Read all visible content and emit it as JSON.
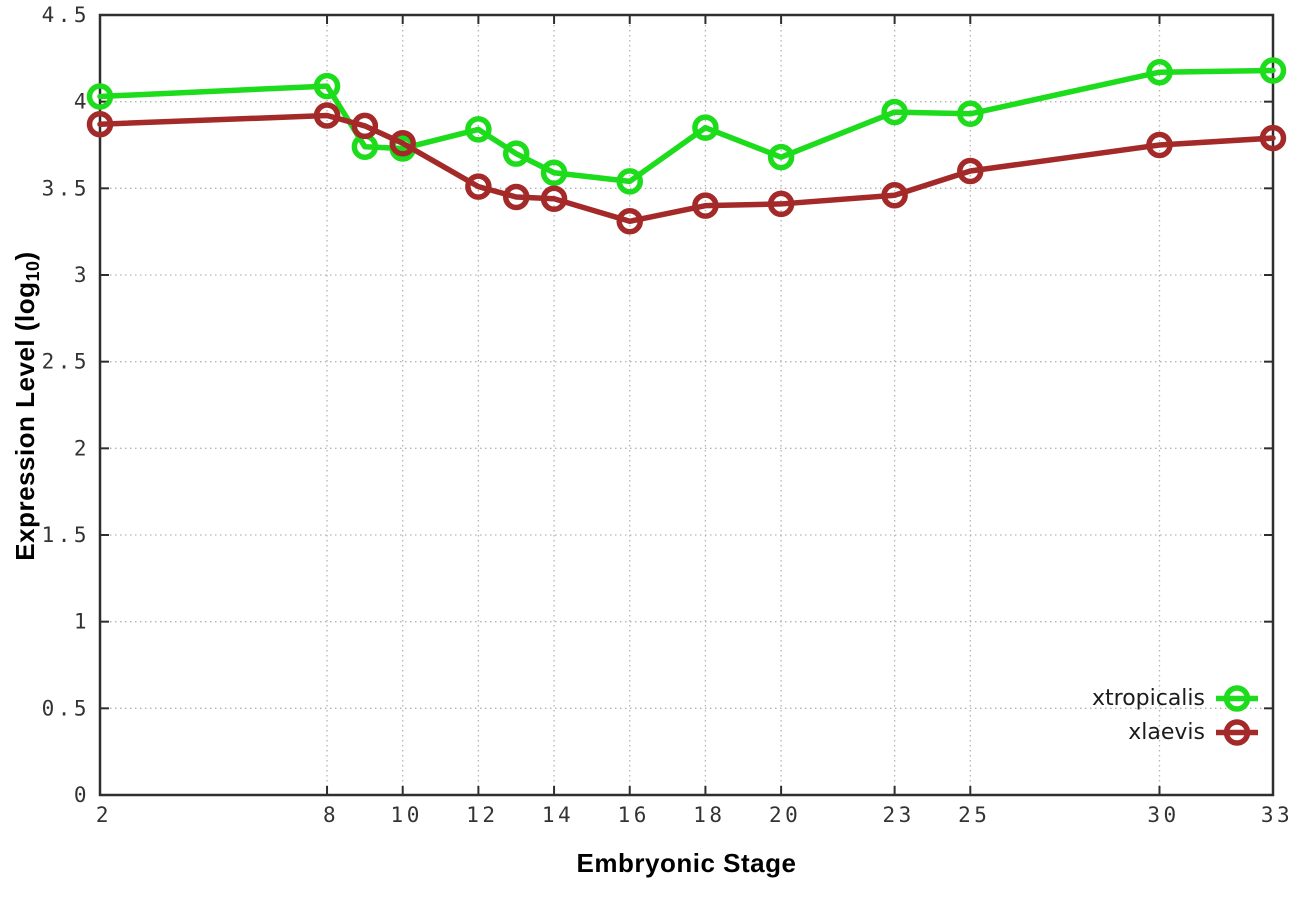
{
  "chart_data": {
    "type": "line",
    "title": "",
    "xlabel": "Embryonic Stage",
    "ylabel": "Expression Level (log10)",
    "ylabel_parts": {
      "main": "Expression Level (log",
      "sub": "10",
      "close": ")"
    },
    "x_range": [
      2,
      33
    ],
    "y_range": [
      0,
      4.5
    ],
    "x_ticks": [
      2,
      8,
      10,
      12,
      14,
      16,
      18,
      20,
      23,
      25,
      30,
      33
    ],
    "y_ticks": [
      0,
      0.5,
      1,
      1.5,
      2,
      2.5,
      3,
      3.5,
      4,
      4.5
    ],
    "grid": true,
    "legend_position": "bottom-right",
    "x": [
      2,
      8,
      9,
      10,
      12,
      13,
      14,
      16,
      18,
      20,
      23,
      25,
      30,
      33
    ],
    "series": [
      {
        "name": "xtropicalis",
        "color": "#1cdc1c",
        "values": [
          4.03,
          4.09,
          3.74,
          3.73,
          3.84,
          3.7,
          3.59,
          3.54,
          3.85,
          3.68,
          3.94,
          3.93,
          4.17,
          4.18
        ]
      },
      {
        "name": "xlaevis",
        "color": "#a42a2a",
        "values": [
          3.87,
          3.92,
          3.86,
          3.76,
          3.51,
          3.45,
          3.44,
          3.31,
          3.4,
          3.41,
          3.46,
          3.6,
          3.75,
          3.79
        ]
      }
    ]
  },
  "colors": {
    "background": "#ffffff",
    "axis": "#2e2e2e",
    "grid": "#b4b4b4",
    "tick_text": "#333333",
    "label_text": "#000000"
  }
}
